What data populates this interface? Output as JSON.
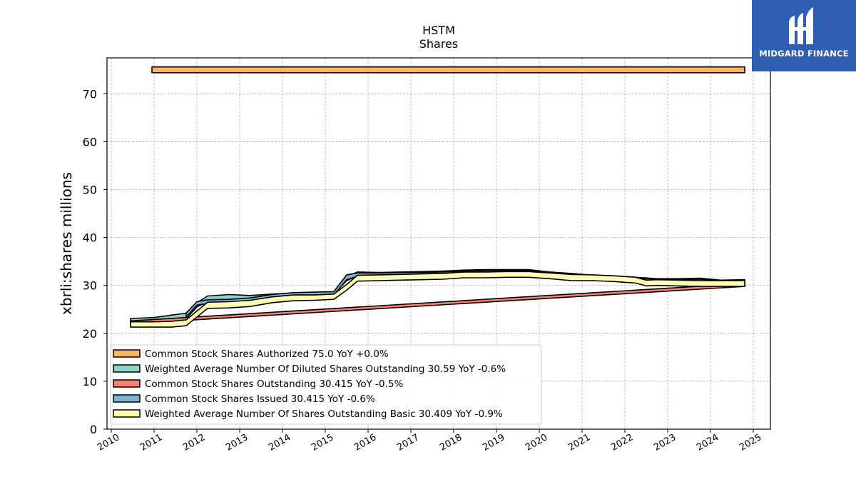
{
  "chart_data": {
    "type": "area",
    "title": "HSTM",
    "subtitle": "Shares",
    "xlabel": "",
    "ylabel": "xbrli:shares millions",
    "xlim": [
      2009.9,
      2025.4
    ],
    "ylim": [
      0,
      77.5
    ],
    "x_ticks": [
      2010,
      2011,
      2012,
      2013,
      2014,
      2015,
      2016,
      2017,
      2018,
      2019,
      2020,
      2021,
      2022,
      2023,
      2024,
      2025
    ],
    "y_ticks": [
      0,
      10,
      20,
      30,
      40,
      50,
      60,
      70
    ],
    "grid": true,
    "legend_position": "lower-left",
    "series": [
      {
        "name": "Common Stock Shares Authorized  75.0 YoY +0.0%",
        "color": "#fdb462",
        "lower": [
          [
            2010.95,
            74.4
          ],
          [
            2024.8,
            74.4
          ]
        ],
        "upper": [
          [
            2010.95,
            75.6
          ],
          [
            2024.8,
            75.6
          ]
        ]
      },
      {
        "name": "Weighted Average Number Of Diluted Shares Outstanding  30.59 YoY -0.6%",
        "color": "#8dd3c7",
        "lower": [
          [
            2010.45,
            22.3
          ],
          [
            2011.0,
            22.4
          ],
          [
            2011.4,
            22.6
          ],
          [
            2011.75,
            23.0
          ],
          [
            2012.0,
            25.5
          ],
          [
            2012.25,
            26.6
          ],
          [
            2012.75,
            26.8
          ],
          [
            2013.25,
            27.0
          ],
          [
            2013.75,
            27.6
          ],
          [
            2014.25,
            28.0
          ],
          [
            2014.75,
            28.1
          ],
          [
            2015.2,
            28.2
          ],
          [
            2015.5,
            31.0
          ],
          [
            2015.75,
            32.0
          ],
          [
            2016.25,
            32.0
          ],
          [
            2016.75,
            32.1
          ],
          [
            2017.25,
            32.2
          ],
          [
            2017.75,
            32.3
          ],
          [
            2018.25,
            32.5
          ],
          [
            2018.75,
            32.6
          ],
          [
            2019.25,
            32.6
          ],
          [
            2019.75,
            32.6
          ],
          [
            2020.25,
            32.1
          ],
          [
            2020.75,
            31.8
          ],
          [
            2021.25,
            31.4
          ],
          [
            2021.75,
            31.3
          ],
          [
            2022.25,
            31.0
          ],
          [
            2022.75,
            30.7
          ],
          [
            2023.25,
            30.7
          ],
          [
            2023.75,
            30.8
          ],
          [
            2024.25,
            30.4
          ],
          [
            2024.8,
            30.5
          ]
        ],
        "upper": [
          [
            2010.45,
            23.1
          ],
          [
            2011.0,
            23.3
          ],
          [
            2011.4,
            23.8
          ],
          [
            2011.75,
            24.2
          ],
          [
            2012.0,
            26.4
          ],
          [
            2012.25,
            27.8
          ],
          [
            2012.75,
            28.1
          ],
          [
            2013.25,
            27.9
          ],
          [
            2013.75,
            28.2
          ],
          [
            2014.25,
            28.4
          ],
          [
            2014.75,
            28.5
          ],
          [
            2015.2,
            28.6
          ],
          [
            2015.5,
            31.8
          ],
          [
            2015.75,
            32.8
          ],
          [
            2016.25,
            32.7
          ],
          [
            2016.75,
            32.8
          ],
          [
            2017.25,
            32.9
          ],
          [
            2017.75,
            33.0
          ],
          [
            2018.25,
            33.2
          ],
          [
            2018.75,
            33.3
          ],
          [
            2019.25,
            33.3
          ],
          [
            2019.75,
            33.3
          ],
          [
            2020.25,
            32.8
          ],
          [
            2020.75,
            32.5
          ],
          [
            2021.25,
            32.1
          ],
          [
            2021.75,
            32.0
          ],
          [
            2022.25,
            31.7
          ],
          [
            2022.75,
            31.4
          ],
          [
            2023.25,
            31.4
          ],
          [
            2023.75,
            31.5
          ],
          [
            2024.25,
            31.1
          ],
          [
            2024.8,
            31.2
          ]
        ]
      },
      {
        "name": "Common Stock Shares Outstanding  30.415 YoY -0.5%",
        "color": "#fb8072",
        "lower": [
          [
            2010.45,
            22.0
          ],
          [
            2024.8,
            29.8
          ]
        ],
        "upper": [
          [
            2010.45,
            22.6
          ],
          [
            2024.8,
            30.4
          ]
        ]
      },
      {
        "name": "Common Stock Shares Issued  30.415 YoY -0.6%",
        "color": "#80b1d3",
        "lower": [
          [
            2011.75,
            23.4
          ],
          [
            2012.0,
            25.9
          ],
          [
            2012.25,
            26.2
          ],
          [
            2012.75,
            26.3
          ],
          [
            2013.25,
            26.6
          ],
          [
            2013.75,
            27.4
          ],
          [
            2014.25,
            27.8
          ],
          [
            2014.75,
            27.9
          ],
          [
            2015.2,
            28.0
          ],
          [
            2015.5,
            31.2
          ],
          [
            2015.75,
            31.9
          ],
          [
            2016.25,
            31.9
          ],
          [
            2016.75,
            32.0
          ],
          [
            2017.25,
            32.0
          ],
          [
            2017.75,
            32.1
          ],
          [
            2018.25,
            32.3
          ],
          [
            2018.75,
            32.4
          ],
          [
            2019.25,
            32.4
          ],
          [
            2019.75,
            32.5
          ],
          [
            2020.25,
            31.8
          ],
          [
            2020.75,
            31.3
          ],
          [
            2021.25,
            31.0
          ],
          [
            2021.75,
            31.2
          ],
          [
            2022.25,
            30.8
          ],
          [
            2022.75,
            30.6
          ],
          [
            2023.25,
            30.5
          ],
          [
            2023.75,
            30.6
          ],
          [
            2024.25,
            30.2
          ],
          [
            2024.8,
            30.1
          ]
        ],
        "upper": [
          [
            2011.75,
            24.2
          ],
          [
            2012.0,
            26.6
          ],
          [
            2012.25,
            27.0
          ],
          [
            2012.75,
            27.1
          ],
          [
            2013.25,
            27.4
          ],
          [
            2013.75,
            28.1
          ],
          [
            2014.25,
            28.5
          ],
          [
            2014.75,
            28.6
          ],
          [
            2015.2,
            28.7
          ],
          [
            2015.5,
            32.2
          ],
          [
            2015.75,
            32.6
          ],
          [
            2016.25,
            32.6
          ],
          [
            2016.75,
            32.7
          ],
          [
            2017.25,
            32.7
          ],
          [
            2017.75,
            32.8
          ],
          [
            2018.25,
            33.0
          ],
          [
            2018.75,
            33.1
          ],
          [
            2019.25,
            33.1
          ],
          [
            2019.75,
            33.1
          ],
          [
            2020.25,
            32.5
          ],
          [
            2020.75,
            32.0
          ],
          [
            2021.25,
            31.7
          ],
          [
            2021.75,
            31.9
          ],
          [
            2022.25,
            31.5
          ],
          [
            2022.75,
            31.3
          ],
          [
            2023.25,
            31.2
          ],
          [
            2023.75,
            31.3
          ],
          [
            2024.25,
            30.9
          ],
          [
            2024.8,
            30.8
          ]
        ]
      },
      {
        "name": "Weighted Average Number Of Shares Outstanding Basic  30.409 YoY -0.9%",
        "color": "#ffffb3",
        "lower": [
          [
            2010.45,
            21.3
          ],
          [
            2011.0,
            21.3
          ],
          [
            2011.4,
            21.3
          ],
          [
            2011.75,
            21.6
          ],
          [
            2012.25,
            25.2
          ],
          [
            2012.75,
            25.3
          ],
          [
            2013.25,
            25.6
          ],
          [
            2013.75,
            26.4
          ],
          [
            2014.25,
            26.8
          ],
          [
            2014.75,
            26.9
          ],
          [
            2015.2,
            27.1
          ],
          [
            2015.5,
            29.0
          ],
          [
            2015.75,
            30.9
          ],
          [
            2016.25,
            31.0
          ],
          [
            2016.75,
            31.1
          ],
          [
            2017.25,
            31.2
          ],
          [
            2017.75,
            31.3
          ],
          [
            2018.25,
            31.6
          ],
          [
            2018.75,
            31.6
          ],
          [
            2019.25,
            31.7
          ],
          [
            2019.75,
            31.7
          ],
          [
            2020.25,
            31.4
          ],
          [
            2020.75,
            31.0
          ],
          [
            2021.25,
            31.0
          ],
          [
            2021.75,
            30.8
          ],
          [
            2022.25,
            30.5
          ],
          [
            2022.5,
            29.9
          ],
          [
            2022.75,
            30.0
          ],
          [
            2023.25,
            29.9
          ],
          [
            2023.75,
            29.8
          ],
          [
            2024.25,
            29.8
          ],
          [
            2024.8,
            29.8
          ]
        ],
        "upper": [
          [
            2010.45,
            22.4
          ],
          [
            2011.0,
            22.4
          ],
          [
            2011.4,
            22.5
          ],
          [
            2011.75,
            22.8
          ],
          [
            2012.25,
            26.5
          ],
          [
            2012.75,
            26.6
          ],
          [
            2013.25,
            26.9
          ],
          [
            2013.75,
            27.6
          ],
          [
            2014.25,
            28.0
          ],
          [
            2014.75,
            28.0
          ],
          [
            2015.2,
            28.2
          ],
          [
            2015.5,
            30.2
          ],
          [
            2015.75,
            32.1
          ],
          [
            2016.25,
            32.2
          ],
          [
            2016.75,
            32.3
          ],
          [
            2017.25,
            32.4
          ],
          [
            2017.75,
            32.5
          ],
          [
            2018.25,
            32.8
          ],
          [
            2018.75,
            32.8
          ],
          [
            2019.25,
            32.9
          ],
          [
            2019.75,
            32.9
          ],
          [
            2020.25,
            32.6
          ],
          [
            2020.75,
            32.3
          ],
          [
            2021.25,
            32.2
          ],
          [
            2021.75,
            32.0
          ],
          [
            2022.25,
            31.7
          ],
          [
            2022.5,
            31.1
          ],
          [
            2022.75,
            31.2
          ],
          [
            2023.25,
            31.1
          ],
          [
            2023.75,
            31.0
          ],
          [
            2024.25,
            31.0
          ],
          [
            2024.8,
            31.0
          ]
        ]
      }
    ]
  },
  "logo": {
    "brand_name": "MIDGARD FINANCE"
  }
}
